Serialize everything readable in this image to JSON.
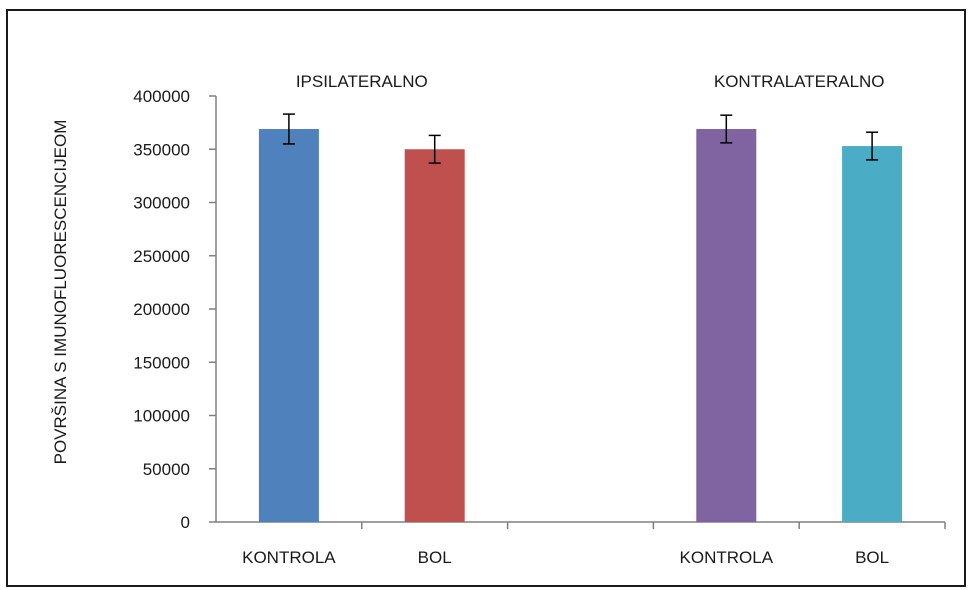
{
  "chart_data": {
    "type": "bar",
    "ylabel": "POVRŠINA S IMUNOFLUORESCENCIJEOM",
    "ylim": [
      0,
      400000
    ],
    "yticks": [
      "0",
      "50000",
      "100000",
      "150000",
      "200000",
      "250000",
      "300000",
      "350000",
      "400000"
    ],
    "grid": false,
    "groups": [
      "IPSILATERALNO",
      "KONTRALATERALNO"
    ],
    "bars": [
      {
        "group": "IPSILATERALNO",
        "category": "KONTROLA",
        "value": 369000,
        "error": 14000,
        "color": "#4f81bd"
      },
      {
        "group": "IPSILATERALNO",
        "category": "BOL",
        "value": 350000,
        "error": 13000,
        "color": "#c0504d"
      },
      {
        "group": "KONTRALATERALNO",
        "category": "KONTROLA",
        "value": 369000,
        "error": 13000,
        "color": "#8064a2"
      },
      {
        "group": "KONTRALATERALNO",
        "category": "BOL",
        "value": 353000,
        "error": 13000,
        "color": "#4bacc6"
      }
    ]
  }
}
